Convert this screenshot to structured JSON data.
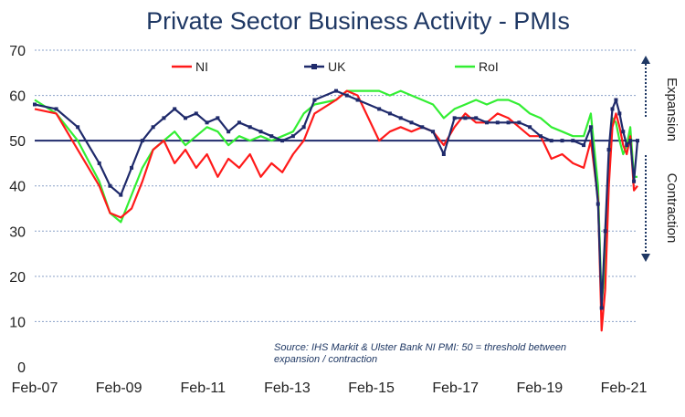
{
  "chart_data": {
    "type": "line",
    "title": "Private Sector Business Activity - PMIs",
    "ylim": [
      0,
      70
    ],
    "yticks": [
      0,
      10,
      20,
      30,
      40,
      50,
      60,
      70
    ],
    "xticks": [
      "Feb-07",
      "Feb-09",
      "Feb-11",
      "Feb-13",
      "Feb-15",
      "Feb-17",
      "Feb-19",
      "Feb-21"
    ],
    "x_range": [
      "2007-02",
      "2021-02"
    ],
    "threshold": 50,
    "grid": true,
    "legend_position": "top",
    "annotations": {
      "expansion": "Expansion",
      "contraction": "Contraction",
      "source": "Source: IHS Markit & Ulster Bank NI PMI: 50 = threshold between expansion / contraction"
    },
    "series": [
      {
        "name": "NI",
        "color": "#ff1a1a",
        "points": [
          [
            "2007-02",
            57
          ],
          [
            "2007-08",
            56
          ],
          [
            "2008-02",
            48
          ],
          [
            "2008-08",
            40
          ],
          [
            "2008-11",
            34
          ],
          [
            "2009-02",
            33
          ],
          [
            "2009-05",
            35
          ],
          [
            "2009-08",
            41
          ],
          [
            "2009-11",
            48
          ],
          [
            "2010-02",
            50
          ],
          [
            "2010-05",
            45
          ],
          [
            "2010-08",
            48
          ],
          [
            "2010-11",
            44
          ],
          [
            "2011-02",
            47
          ],
          [
            "2011-05",
            42
          ],
          [
            "2011-08",
            46
          ],
          [
            "2011-11",
            44
          ],
          [
            "2012-02",
            47
          ],
          [
            "2012-05",
            42
          ],
          [
            "2012-08",
            45
          ],
          [
            "2012-11",
            43
          ],
          [
            "2013-02",
            47
          ],
          [
            "2013-05",
            50
          ],
          [
            "2013-08",
            56
          ],
          [
            "2014-02",
            59
          ],
          [
            "2014-05",
            61
          ],
          [
            "2014-08",
            60
          ],
          [
            "2015-02",
            50
          ],
          [
            "2015-05",
            52
          ],
          [
            "2015-08",
            53
          ],
          [
            "2015-11",
            52
          ],
          [
            "2016-02",
            53
          ],
          [
            "2016-05",
            52
          ],
          [
            "2016-08",
            49
          ],
          [
            "2016-11",
            53
          ],
          [
            "2017-02",
            56
          ],
          [
            "2017-05",
            54
          ],
          [
            "2017-08",
            54
          ],
          [
            "2017-11",
            56
          ],
          [
            "2018-02",
            55
          ],
          [
            "2018-05",
            53
          ],
          [
            "2018-08",
            51
          ],
          [
            "2018-11",
            51
          ],
          [
            "2019-02",
            46
          ],
          [
            "2019-05",
            47
          ],
          [
            "2019-08",
            45
          ],
          [
            "2019-11",
            44
          ],
          [
            "2020-01",
            50
          ],
          [
            "2020-03",
            37
          ],
          [
            "2020-04",
            8
          ],
          [
            "2020-05",
            17
          ],
          [
            "2020-06",
            40
          ],
          [
            "2020-07",
            53
          ],
          [
            "2020-08",
            56
          ],
          [
            "2020-09",
            53
          ],
          [
            "2020-10",
            49
          ],
          [
            "2020-11",
            47
          ],
          [
            "2020-12",
            51
          ],
          [
            "2021-01",
            39
          ],
          [
            "2021-02",
            40
          ]
        ]
      },
      {
        "name": "UK",
        "color": "#1f2a6b",
        "points": [
          [
            "2007-02",
            58
          ],
          [
            "2007-08",
            57
          ],
          [
            "2008-02",
            53
          ],
          [
            "2008-08",
            45
          ],
          [
            "2008-11",
            40
          ],
          [
            "2009-02",
            38
          ],
          [
            "2009-05",
            44
          ],
          [
            "2009-08",
            50
          ],
          [
            "2009-11",
            53
          ],
          [
            "2010-02",
            55
          ],
          [
            "2010-05",
            57
          ],
          [
            "2010-08",
            55
          ],
          [
            "2010-11",
            56
          ],
          [
            "2011-02",
            54
          ],
          [
            "2011-05",
            55
          ],
          [
            "2011-08",
            52
          ],
          [
            "2011-11",
            54
          ],
          [
            "2012-02",
            53
          ],
          [
            "2012-05",
            52
          ],
          [
            "2012-08",
            51
          ],
          [
            "2012-11",
            50
          ],
          [
            "2013-02",
            51
          ],
          [
            "2013-05",
            53
          ],
          [
            "2013-08",
            59
          ],
          [
            "2014-02",
            61
          ],
          [
            "2014-05",
            60
          ],
          [
            "2014-08",
            59
          ],
          [
            "2015-02",
            57
          ],
          [
            "2015-05",
            56
          ],
          [
            "2015-08",
            55
          ],
          [
            "2015-11",
            54
          ],
          [
            "2016-02",
            53
          ],
          [
            "2016-05",
            52
          ],
          [
            "2016-08",
            47
          ],
          [
            "2016-11",
            55
          ],
          [
            "2017-02",
            55
          ],
          [
            "2017-05",
            55
          ],
          [
            "2017-08",
            54
          ],
          [
            "2017-11",
            54
          ],
          [
            "2018-02",
            54
          ],
          [
            "2018-05",
            54
          ],
          [
            "2018-08",
            53
          ],
          [
            "2018-11",
            51
          ],
          [
            "2019-02",
            50
          ],
          [
            "2019-05",
            50
          ],
          [
            "2019-08",
            50
          ],
          [
            "2019-11",
            49
          ],
          [
            "2020-01",
            53
          ],
          [
            "2020-03",
            36
          ],
          [
            "2020-04",
            13
          ],
          [
            "2020-05",
            30
          ],
          [
            "2020-06",
            48
          ],
          [
            "2020-07",
            57
          ],
          [
            "2020-08",
            59
          ],
          [
            "2020-09",
            56
          ],
          [
            "2020-10",
            52
          ],
          [
            "2020-11",
            49
          ],
          [
            "2020-12",
            50
          ],
          [
            "2021-01",
            41
          ],
          [
            "2021-02",
            50
          ]
        ]
      },
      {
        "name": "RoI",
        "color": "#33ee33",
        "points": [
          [
            "2007-02",
            59
          ],
          [
            "2007-08",
            56
          ],
          [
            "2008-02",
            50
          ],
          [
            "2008-08",
            41
          ],
          [
            "2008-11",
            34
          ],
          [
            "2009-02",
            32
          ],
          [
            "2009-05",
            38
          ],
          [
            "2009-08",
            44
          ],
          [
            "2009-11",
            48
          ],
          [
            "2010-02",
            50
          ],
          [
            "2010-05",
            52
          ],
          [
            "2010-08",
            49
          ],
          [
            "2010-11",
            51
          ],
          [
            "2011-02",
            53
          ],
          [
            "2011-05",
            52
          ],
          [
            "2011-08",
            49
          ],
          [
            "2011-11",
            51
          ],
          [
            "2012-02",
            50
          ],
          [
            "2012-05",
            51
          ],
          [
            "2012-08",
            50
          ],
          [
            "2012-11",
            51
          ],
          [
            "2013-02",
            52
          ],
          [
            "2013-05",
            56
          ],
          [
            "2013-08",
            58
          ],
          [
            "2014-02",
            59
          ],
          [
            "2014-05",
            61
          ],
          [
            "2014-08",
            61
          ],
          [
            "2015-02",
            61
          ],
          [
            "2015-05",
            60
          ],
          [
            "2015-08",
            61
          ],
          [
            "2015-11",
            60
          ],
          [
            "2016-02",
            59
          ],
          [
            "2016-05",
            58
          ],
          [
            "2016-08",
            55
          ],
          [
            "2016-11",
            57
          ],
          [
            "2017-02",
            58
          ],
          [
            "2017-05",
            59
          ],
          [
            "2017-08",
            58
          ],
          [
            "2017-11",
            59
          ],
          [
            "2018-02",
            59
          ],
          [
            "2018-05",
            58
          ],
          [
            "2018-08",
            56
          ],
          [
            "2018-11",
            55
          ],
          [
            "2019-02",
            53
          ],
          [
            "2019-05",
            52
          ],
          [
            "2019-08",
            51
          ],
          [
            "2019-11",
            51
          ],
          [
            "2020-01",
            56
          ],
          [
            "2020-03",
            40
          ],
          [
            "2020-04",
            14
          ],
          [
            "2020-05",
            22
          ],
          [
            "2020-06",
            43
          ],
          [
            "2020-07",
            55
          ],
          [
            "2020-08",
            54
          ],
          [
            "2020-09",
            50
          ],
          [
            "2020-10",
            47
          ],
          [
            "2020-11",
            49
          ],
          [
            "2020-12",
            53
          ],
          [
            "2021-01",
            42
          ],
          [
            "2021-02",
            42
          ]
        ]
      }
    ]
  }
}
